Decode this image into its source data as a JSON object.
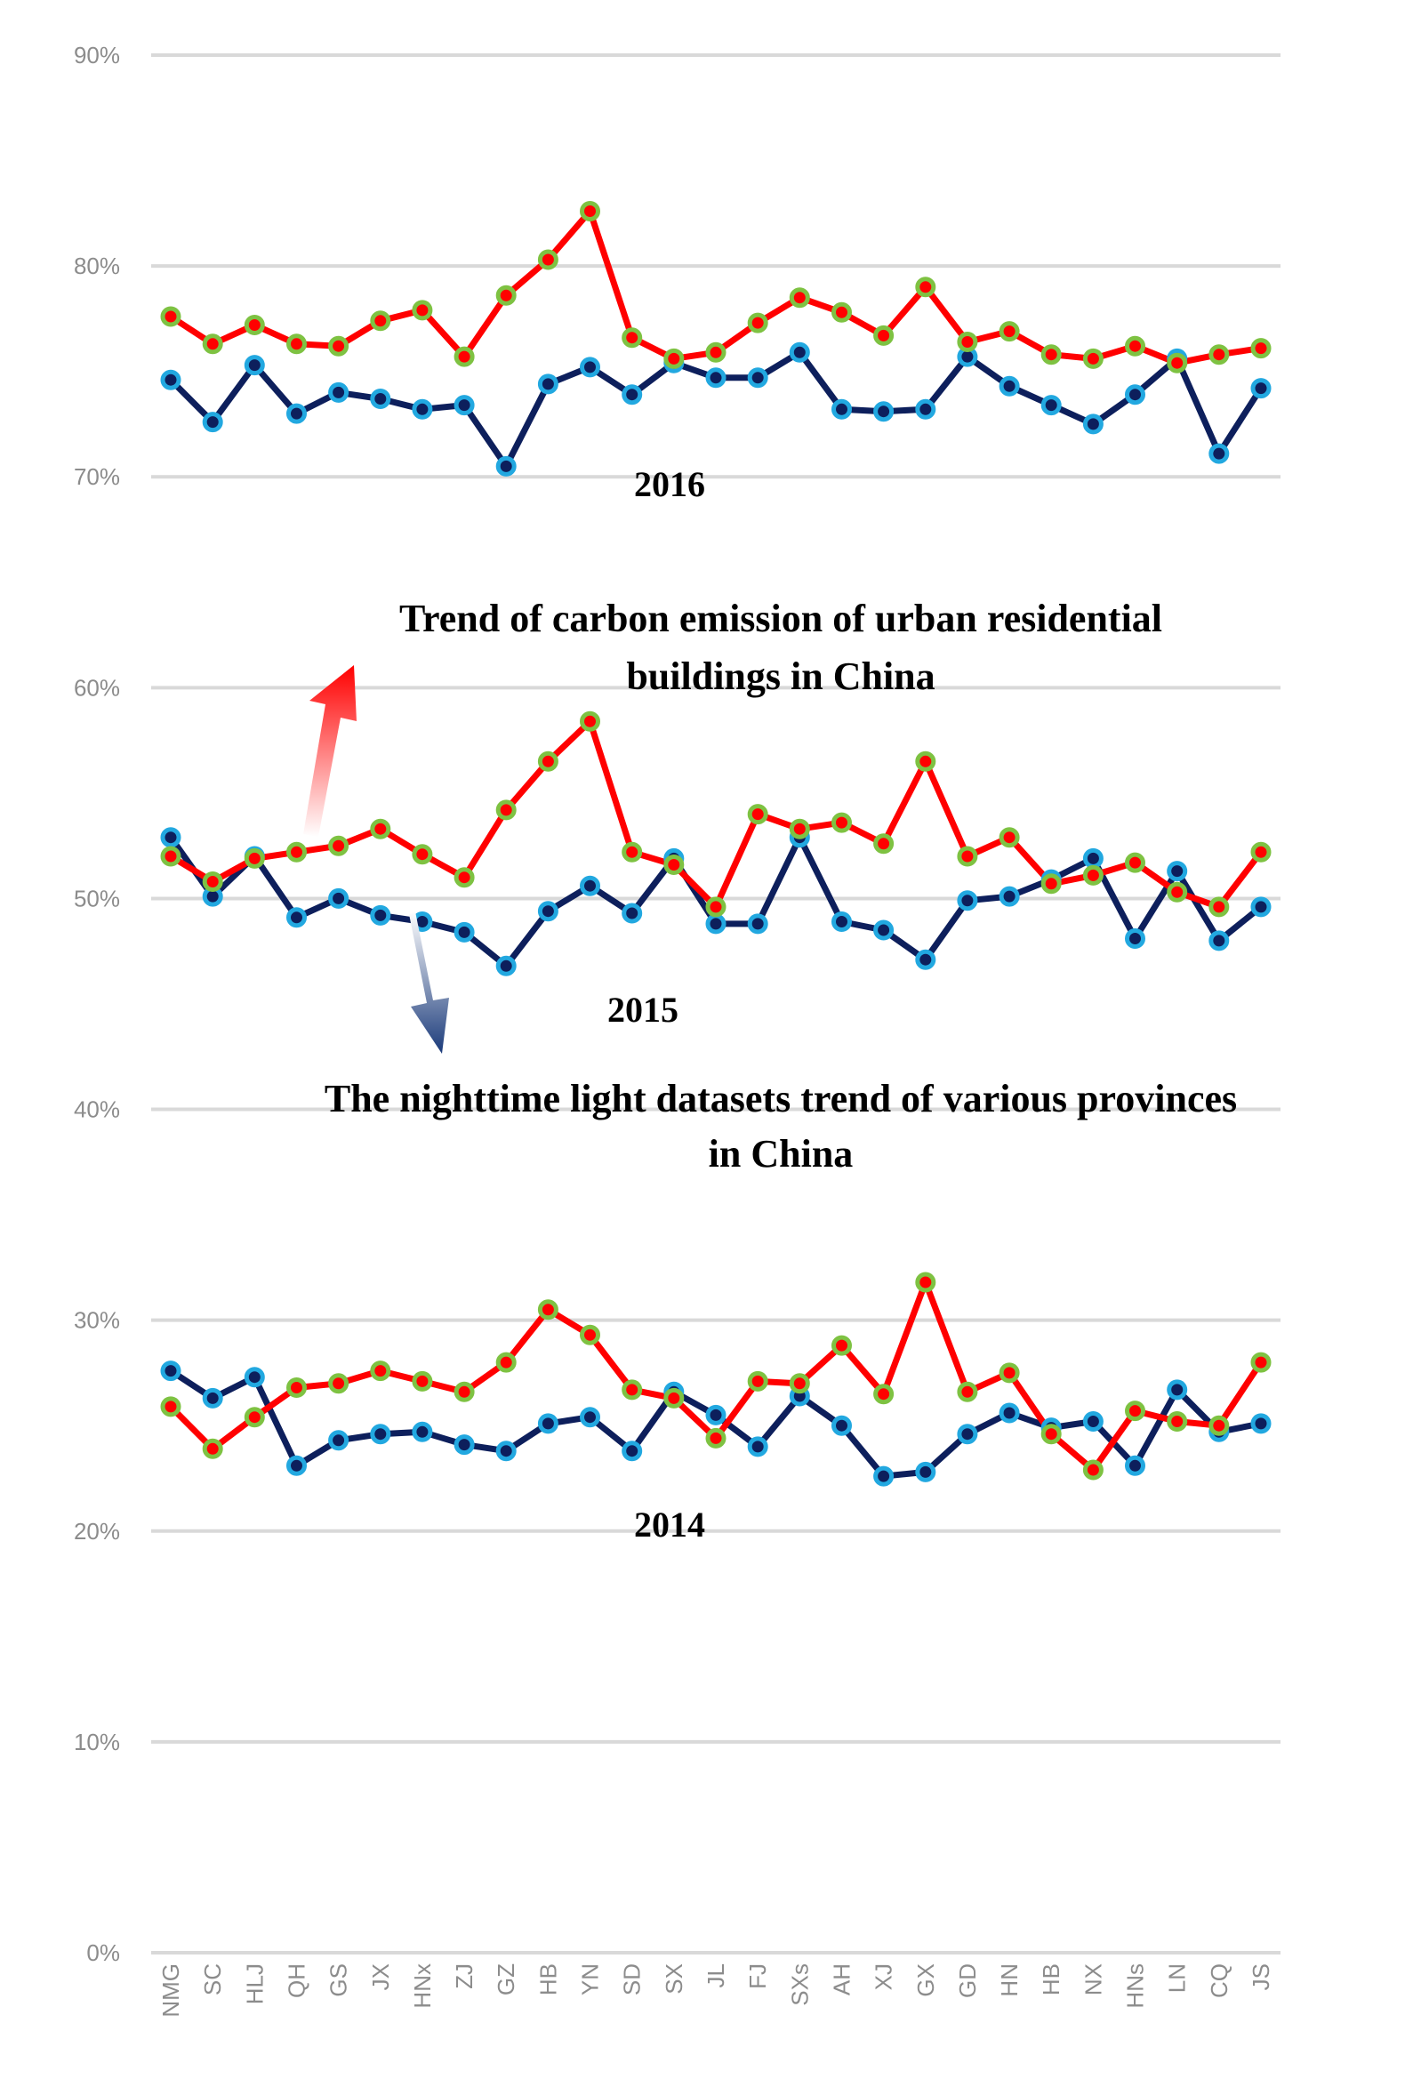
{
  "chart_data": {
    "type": "line",
    "title": "",
    "xlabel": "",
    "ylabel": "",
    "ylim": [
      0,
      90
    ],
    "yticks": [
      "0%",
      "10%",
      "20%",
      "30%",
      "40%",
      "50%",
      "60%",
      "70%",
      "80%",
      "90%"
    ],
    "categories": [
      "NMG",
      "SC",
      "HLJ",
      "QH",
      "GS",
      "JX",
      "HNx",
      "ZJ",
      "GZ",
      "HB",
      "YN",
      "SD",
      "SX",
      "JL",
      "FJ",
      "SXs",
      "AH",
      "XJ",
      "GX",
      "GD",
      "HN",
      "HB",
      "NX",
      "HNs",
      "LN",
      "CQ",
      "JS"
    ],
    "groups": [
      {
        "year": "2016",
        "series": [
          {
            "name": "Trend of carbon emission of urban residential buildings in China",
            "color": "#ff0000",
            "marker_edge": "#7ec242",
            "values": [
              77.6,
              76.3,
              77.2,
              76.3,
              76.2,
              77.4,
              77.9,
              75.7,
              78.6,
              80.3,
              82.6,
              76.6,
              75.6,
              75.9,
              77.3,
              78.5,
              77.8,
              76.7,
              79.0,
              76.4,
              76.9,
              75.8,
              75.6,
              76.2,
              75.4,
              75.8,
              76.1
            ]
          },
          {
            "name": "The nighttime light datasets trend of various provinces in China",
            "color": "#0d1f5c",
            "marker_edge": "#22a8e0",
            "values": [
              74.6,
              72.6,
              75.3,
              73.0,
              74.0,
              73.7,
              73.2,
              73.4,
              70.5,
              74.4,
              75.2,
              73.9,
              75.4,
              74.7,
              74.7,
              75.9,
              73.2,
              73.1,
              73.2,
              75.7,
              74.3,
              73.4,
              72.5,
              73.9,
              75.6,
              71.1,
              74.2
            ]
          }
        ]
      },
      {
        "year": "2015",
        "series": [
          {
            "name": "Trend of carbon emission of urban residential buildings in China",
            "color": "#ff0000",
            "marker_edge": "#7ec242",
            "values": [
              52.0,
              50.8,
              51.9,
              52.2,
              52.5,
              53.3,
              52.1,
              51.0,
              54.2,
              56.5,
              58.4,
              52.2,
              51.6,
              49.6,
              54.0,
              53.3,
              53.6,
              52.6,
              56.5,
              52.0,
              52.9,
              50.7,
              51.1,
              51.7,
              50.3,
              49.6,
              52.2
            ]
          },
          {
            "name": "The nighttime light datasets trend of various provinces in China",
            "color": "#0d1f5c",
            "marker_edge": "#22a8e0",
            "values": [
              52.9,
              50.1,
              52.0,
              49.1,
              50.0,
              49.2,
              48.9,
              48.4,
              46.8,
              49.4,
              50.6,
              49.3,
              51.9,
              48.8,
              48.8,
              52.9,
              48.9,
              48.5,
              47.1,
              49.9,
              50.1,
              50.9,
              51.9,
              48.1,
              51.3,
              48.0,
              49.6
            ]
          }
        ]
      },
      {
        "year": "2014",
        "series": [
          {
            "name": "Trend of carbon emission of urban residential buildings in China",
            "color": "#ff0000",
            "marker_edge": "#7ec242",
            "values": [
              25.9,
              23.9,
              25.4,
              26.8,
              27.0,
              27.6,
              27.1,
              26.6,
              28.0,
              30.5,
              29.3,
              26.7,
              26.3,
              24.4,
              27.1,
              27.0,
              28.8,
              26.5,
              31.8,
              26.6,
              27.5,
              24.6,
              22.9,
              25.7,
              25.2,
              25.0,
              28.0
            ]
          },
          {
            "name": "The nighttime light datasets trend of various provinces in China",
            "color": "#0d1f5c",
            "marker_edge": "#22a8e0",
            "values": [
              27.6,
              26.3,
              27.3,
              23.1,
              24.3,
              24.6,
              24.7,
              24.1,
              23.8,
              25.1,
              25.4,
              23.8,
              26.6,
              25.5,
              24.0,
              26.4,
              25.0,
              22.6,
              22.8,
              24.6,
              25.6,
              24.9,
              25.2,
              23.1,
              26.7,
              24.7,
              25.1
            ]
          }
        ]
      }
    ],
    "annotations": {
      "carbon_title_line1": "Trend of carbon emission of urban residential",
      "carbon_title_line2": "buildings in China",
      "light_title_line1": "The nighttime light datasets trend of various provinces",
      "light_title_line2": "in China"
    },
    "grid": true,
    "legend": "none"
  }
}
